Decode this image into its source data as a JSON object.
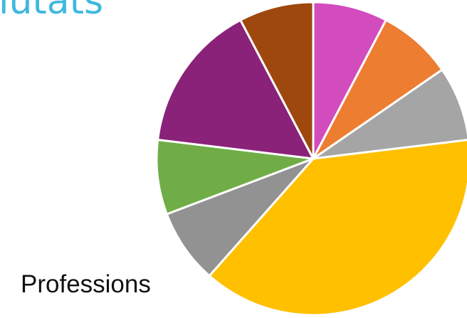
{
  "title": "iutats",
  "chart_data": {
    "type": "pie",
    "title": "iutats",
    "label": "Professions",
    "slices": [
      {
        "value": 1,
        "color": "#d24cbd"
      },
      {
        "value": 1,
        "color": "#ed7d31"
      },
      {
        "value": 1,
        "color": "#a5a5a5"
      },
      {
        "value": 5,
        "color": "#ffc000"
      },
      {
        "value": 1,
        "color": "#929292"
      },
      {
        "value": 1,
        "color": "#70ad47"
      },
      {
        "value": 2,
        "color": "#8a2279"
      },
      {
        "value": 1,
        "color": "#9e480e"
      }
    ]
  }
}
